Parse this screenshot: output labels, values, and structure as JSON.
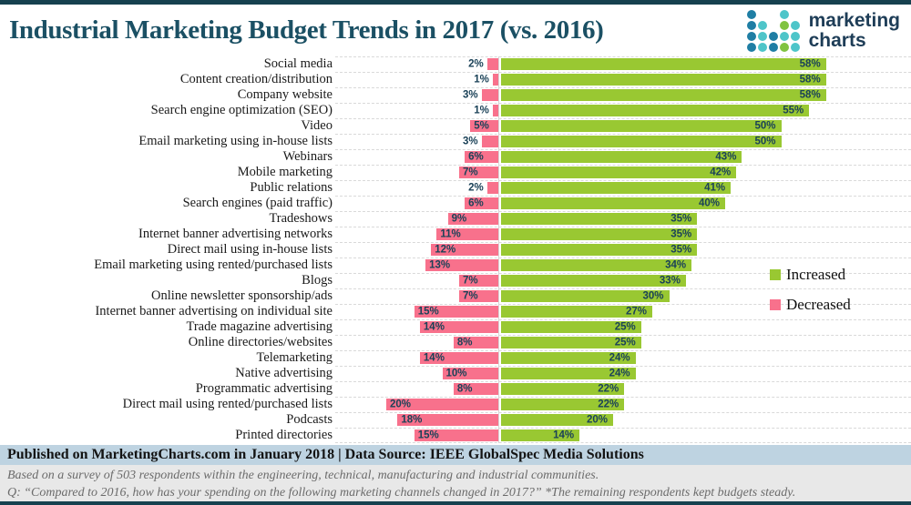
{
  "header": {
    "title": "Industrial Marketing Budget Trends in 2017 (vs. 2016)",
    "logo": {
      "line1": "marketing",
      "line2": "charts",
      "dot_grid": [
        [
          "blue",
          "",
          "",
          "teal",
          ""
        ],
        [
          "blue",
          "teal",
          "",
          "green",
          "teal"
        ],
        [
          "blue",
          "teal",
          "blue",
          "teal",
          "teal"
        ],
        [
          "blue",
          "teal",
          "blue",
          "green",
          "teal"
        ]
      ],
      "dot_colors": {
        "blue": "#1f7ea4",
        "teal": "#4ec5c9",
        "green": "#80c341"
      }
    }
  },
  "chart_data": {
    "type": "bar",
    "orientation": "diverging-horizontal",
    "value_suffix": "%",
    "xlim": [
      -25,
      72
    ],
    "grid": "dashed-horizontal",
    "legend_position": "right",
    "categories": [
      "Social media",
      "Content creation/distribution",
      "Company website",
      "Search engine optimization (SEO)",
      "Video",
      "Email marketing using in-house lists",
      "Webinars",
      "Mobile marketing",
      "Public relations",
      "Search engines (paid traffic)",
      "Tradeshows",
      "Internet banner advertising networks",
      "Direct mail using in-house lists",
      "Email marketing using rented/purchased lists",
      "Blogs",
      "Online newsletter sponsorship/ads",
      "Internet banner advertising on individual site",
      "Trade magazine advertising",
      "Online directories/websites",
      "Telemarketing",
      "Native advertising",
      "Programmatic advertising",
      "Direct mail using rented/purchased lists",
      "Podcasts",
      "Printed directories"
    ],
    "series": [
      {
        "name": "Increased",
        "color": "#99c832",
        "values": [
          58,
          58,
          58,
          55,
          50,
          50,
          43,
          42,
          41,
          40,
          35,
          35,
          35,
          34,
          33,
          30,
          27,
          25,
          25,
          24,
          24,
          22,
          22,
          20,
          14
        ]
      },
      {
        "name": "Decreased",
        "color": "#f8718c",
        "values": [
          2,
          1,
          3,
          1,
          5,
          3,
          6,
          7,
          2,
          6,
          9,
          11,
          12,
          13,
          7,
          7,
          15,
          14,
          8,
          14,
          10,
          8,
          20,
          18,
          15
        ]
      }
    ]
  },
  "footer": {
    "published": "Published on MarketingCharts.com in January 2018 | Data Source: IEEE GlobalSpec Media Solutions",
    "note1": "Based on a survey of 503 respondents within the engineering, technical, manufacturing and industrial communities.",
    "note2": "Q: “Compared to 2016, how has your spending on the following marketing channels changed in 2017?” *The remaining respondents kept budgets steady."
  }
}
